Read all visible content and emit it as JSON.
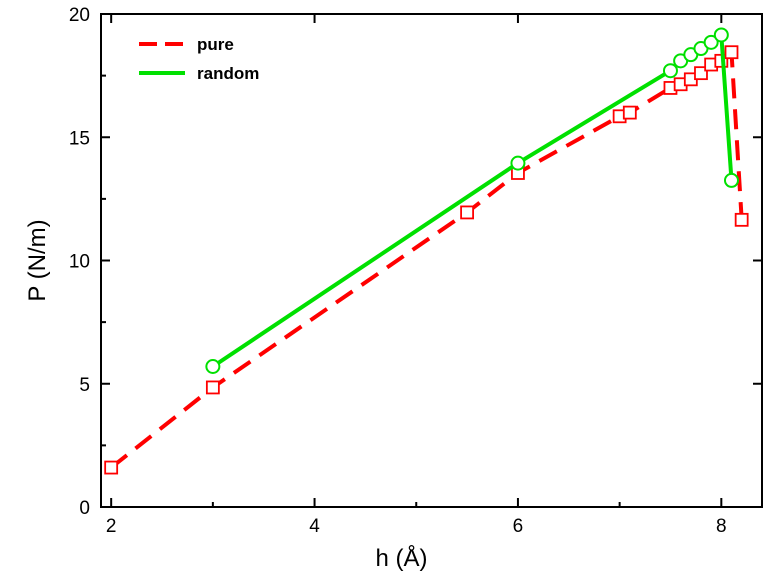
{
  "chart_data": {
    "type": "line",
    "xlabel": "h (Å)",
    "ylabel": "P (N/m)",
    "xlim": [
      1.9,
      8.4
    ],
    "ylim": [
      0,
      20
    ],
    "xticks": [
      2,
      4,
      6,
      8
    ],
    "yticks": [
      0,
      5,
      10,
      15,
      20
    ],
    "grid": false,
    "legend_position": "top-left",
    "series": [
      {
        "name": "pure",
        "line_style": "dashed",
        "marker": "square",
        "color": "#ff0000",
        "x": [
          2.0,
          3.0,
          5.5,
          6.0,
          7.0,
          7.1,
          7.5,
          7.6,
          7.7,
          7.8,
          7.9,
          8.0,
          8.1,
          8.2
        ],
        "y": [
          1.6,
          4.85,
          11.95,
          13.55,
          15.85,
          16.0,
          17.0,
          17.15,
          17.35,
          17.6,
          17.95,
          18.1,
          18.45,
          11.65
        ]
      },
      {
        "name": "random",
        "line_style": "solid",
        "marker": "circle",
        "color": "#00e000",
        "x": [
          3.0,
          6.0,
          7.5,
          7.6,
          7.7,
          7.8,
          7.9,
          8.0,
          8.1
        ],
        "y": [
          5.7,
          13.95,
          17.7,
          18.1,
          18.35,
          18.6,
          18.85,
          19.15,
          13.25
        ]
      }
    ]
  }
}
